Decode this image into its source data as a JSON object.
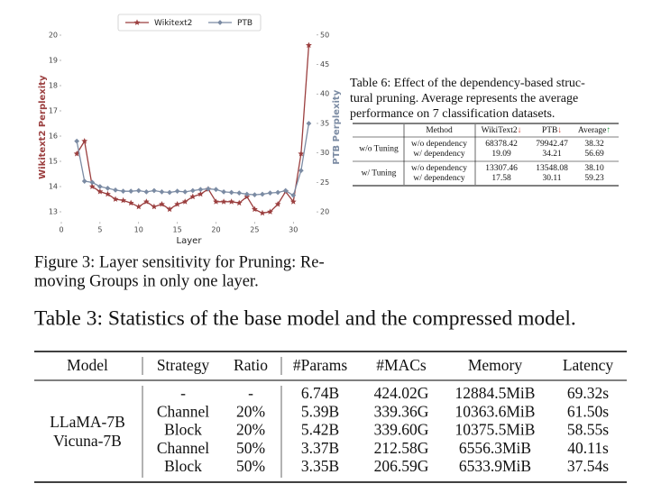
{
  "chart_data": {
    "type": "line",
    "xlabel": "Layer",
    "ylabel": "Wikitext2 Perplexity",
    "y2label": "PTB Perplexity",
    "legend": "upper center",
    "x": [
      2,
      3,
      4,
      5,
      6,
      7,
      8,
      9,
      10,
      11,
      12,
      13,
      14,
      15,
      16,
      17,
      18,
      19,
      20,
      21,
      22,
      23,
      24,
      25,
      26,
      27,
      28,
      29,
      30,
      31,
      32
    ],
    "series": [
      {
        "name": "Wikitext2",
        "color": "#9b3f3f",
        "marker": "star",
        "values": [
          15.3,
          15.8,
          14.0,
          13.8,
          13.7,
          13.5,
          13.45,
          13.35,
          13.2,
          13.4,
          13.2,
          13.3,
          13.1,
          13.3,
          13.4,
          13.6,
          13.7,
          13.9,
          13.4,
          13.4,
          13.4,
          13.35,
          13.6,
          13.1,
          12.95,
          13.0,
          13.3,
          13.8,
          13.4,
          15.3,
          19.6
        ]
      },
      {
        "name": "PTB",
        "color": "#7b8ba3",
        "marker": "diamond",
        "axis": "y2",
        "values": [
          32.0,
          25.2,
          25.0,
          24.3,
          24.0,
          23.7,
          23.5,
          23.5,
          23.6,
          23.4,
          23.6,
          23.4,
          23.3,
          23.5,
          23.4,
          23.6,
          23.8,
          23.9,
          23.8,
          23.4,
          23.3,
          23.2,
          23.0,
          22.9,
          23.0,
          23.2,
          23.3,
          23.6,
          22.8,
          27.0,
          35.0
        ]
      }
    ],
    "xlim": [
      0,
      33
    ],
    "xticks": [
      0,
      5,
      10,
      15,
      20,
      25,
      30
    ],
    "ylim": [
      12.6,
      20.1
    ],
    "yticks": [
      13,
      14,
      15,
      16,
      17,
      18,
      19,
      20
    ],
    "y2lim": [
      18.3,
      50.4
    ],
    "y2ticks": [
      20,
      25,
      30,
      35,
      40,
      45,
      50
    ]
  },
  "figure_caption": [
    "Figure 3: Layer sensitivity for Pruning: Re-",
    "moving Groups in only one layer."
  ],
  "table6": {
    "caption": [
      "Table 6: Effect of the dependency-based struc-",
      "tural pruning.  Average represents the average",
      "performance on 7 classification datasets."
    ],
    "header": [
      {
        "text": "Method"
      },
      {
        "text": "WikiText2",
        "arrow": "↓"
      },
      {
        "text": "PTB",
        "arrow": "↓"
      },
      {
        "text": "Average",
        "arrow": "↑"
      }
    ],
    "groups": [
      {
        "label": "w/o Tuning",
        "rows": [
          [
            "w/o dependency",
            "68378.42",
            "79942.47",
            "38.32"
          ],
          [
            "w/ dependency",
            "19.09",
            "34.21",
            "56.69"
          ]
        ]
      },
      {
        "label": "w/ Tuning",
        "rows": [
          [
            "w/o dependency",
            "13307.46",
            "13548.08",
            "38.10"
          ],
          [
            "w/ dependency",
            "17.58",
            "30.11",
            "59.23"
          ]
        ]
      }
    ]
  },
  "table3": {
    "caption": "Table 3: Statistics of the base model and the compressed model.",
    "header": [
      "Model",
      "Strategy",
      "Ratio",
      "#Params",
      "#MACs",
      "Memory",
      "Latency"
    ],
    "model": [
      "LLaMA-7B",
      "Vicuna-7B"
    ],
    "rows": [
      [
        "-",
        "-",
        "6.74B",
        "424.02G",
        "12884.5MiB",
        "69.32s"
      ],
      [
        "Channel",
        "20%",
        "5.39B",
        "339.36G",
        "10363.6MiB",
        "61.50s"
      ],
      [
        "Block",
        "20%",
        "5.42B",
        "339.60G",
        "10375.5MiB",
        "58.55s"
      ],
      [
        "Channel",
        "50%",
        "3.37B",
        "212.58G",
        "6556.3MiB",
        "40.11s"
      ],
      [
        "Block",
        "50%",
        "3.35B",
        "206.59G",
        "6533.9MiB",
        "37.54s"
      ]
    ]
  }
}
